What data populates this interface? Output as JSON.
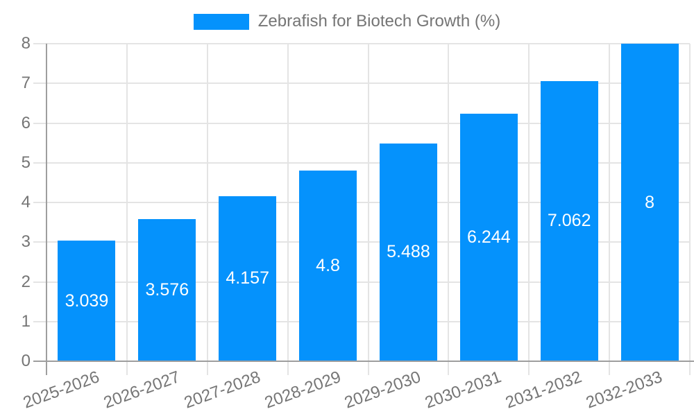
{
  "chart_data": {
    "type": "bar",
    "title": "Zebrafish for Biotech Growth (%)",
    "categories": [
      "2025-2026",
      "2026-2027",
      "2027-2028",
      "2028-2029",
      "2029-2030",
      "2030-2031",
      "2031-2032",
      "2032-2033"
    ],
    "values": [
      3.039,
      3.576,
      4.157,
      4.8,
      5.488,
      6.244,
      7.062,
      8
    ],
    "value_labels": [
      "3.039",
      "3.576",
      "4.157",
      "4.8",
      "5.488",
      "6.244",
      "7.062",
      "8"
    ],
    "xlabel": "",
    "ylabel": "",
    "ylim": [
      0,
      8
    ],
    "yticks": [
      "0",
      "1",
      "2",
      "3",
      "4",
      "5",
      "6",
      "7",
      "8"
    ],
    "grid": true,
    "legend_position": "top",
    "colors": {
      "bar": "#0592fc",
      "grid": "#e4e4e4",
      "axis": "#9e9e9e",
      "tick_text": "#757575",
      "value_text": "#ffffff",
      "background": "#ffffff"
    }
  }
}
